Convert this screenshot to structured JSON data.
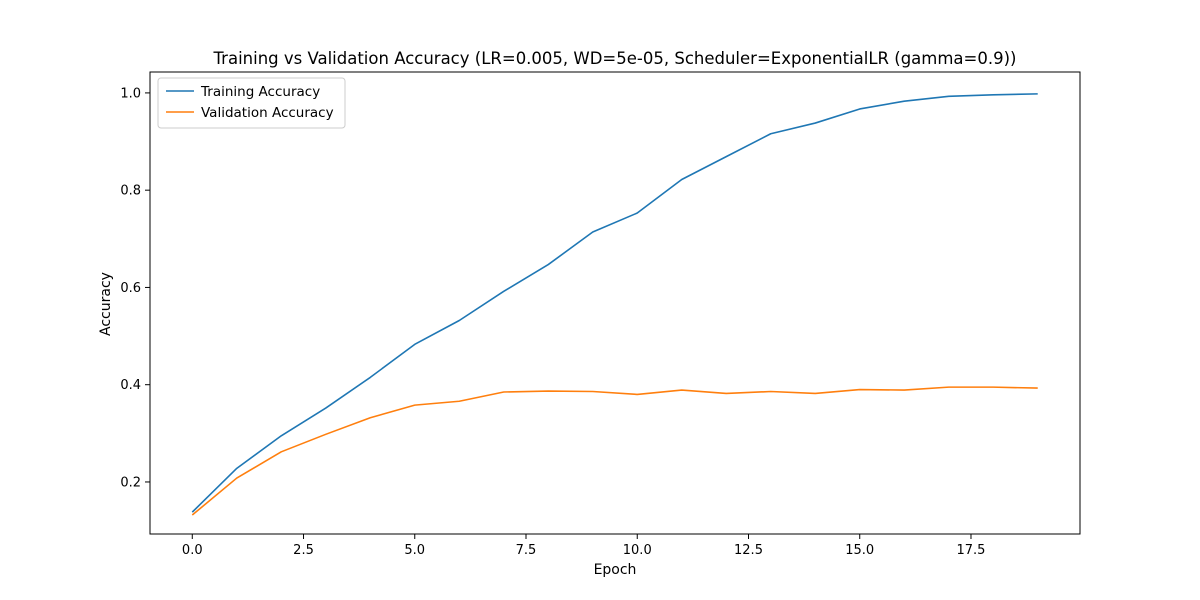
{
  "chart_data": {
    "type": "line",
    "title": "Training vs Validation Accuracy (LR=0.005, WD=5e-05, Scheduler=ExponentialLR (gamma=0.9))",
    "xlabel": "Epoch",
    "ylabel": "Accuracy",
    "xlim": [
      -0.95,
      19.95
    ],
    "ylim": [
      0.093,
      1.043
    ],
    "x_ticks": [
      0.0,
      2.5,
      5.0,
      7.5,
      10.0,
      12.5,
      15.0,
      17.5
    ],
    "x_tick_labels": [
      "0.0",
      "2.5",
      "5.0",
      "7.5",
      "10.0",
      "12.5",
      "15.0",
      "17.5"
    ],
    "y_ticks": [
      0.2,
      0.4,
      0.6,
      0.8,
      1.0
    ],
    "y_tick_labels": [
      "0.2",
      "0.4",
      "0.6",
      "0.8",
      "1.0"
    ],
    "grid": false,
    "legend_position": "top-left",
    "x": [
      0,
      1,
      2,
      3,
      4,
      5,
      6,
      7,
      8,
      9,
      10,
      11,
      12,
      13,
      14,
      15,
      16,
      17,
      18,
      19
    ],
    "series": [
      {
        "name": "Training Accuracy",
        "color": "#1f77b4",
        "values": [
          0.138,
          0.228,
          0.295,
          0.352,
          0.415,
          0.483,
          0.532,
          0.592,
          0.647,
          0.714,
          0.753,
          0.822,
          0.869,
          0.916,
          0.938,
          0.967,
          0.983,
          0.993,
          0.996,
          0.998
        ]
      },
      {
        "name": "Validation Accuracy",
        "color": "#ff7f0e",
        "values": [
          0.132,
          0.208,
          0.262,
          0.298,
          0.332,
          0.358,
          0.366,
          0.385,
          0.387,
          0.386,
          0.38,
          0.389,
          0.382,
          0.386,
          0.382,
          0.39,
          0.389,
          0.395,
          0.395,
          0.393
        ]
      }
    ]
  }
}
